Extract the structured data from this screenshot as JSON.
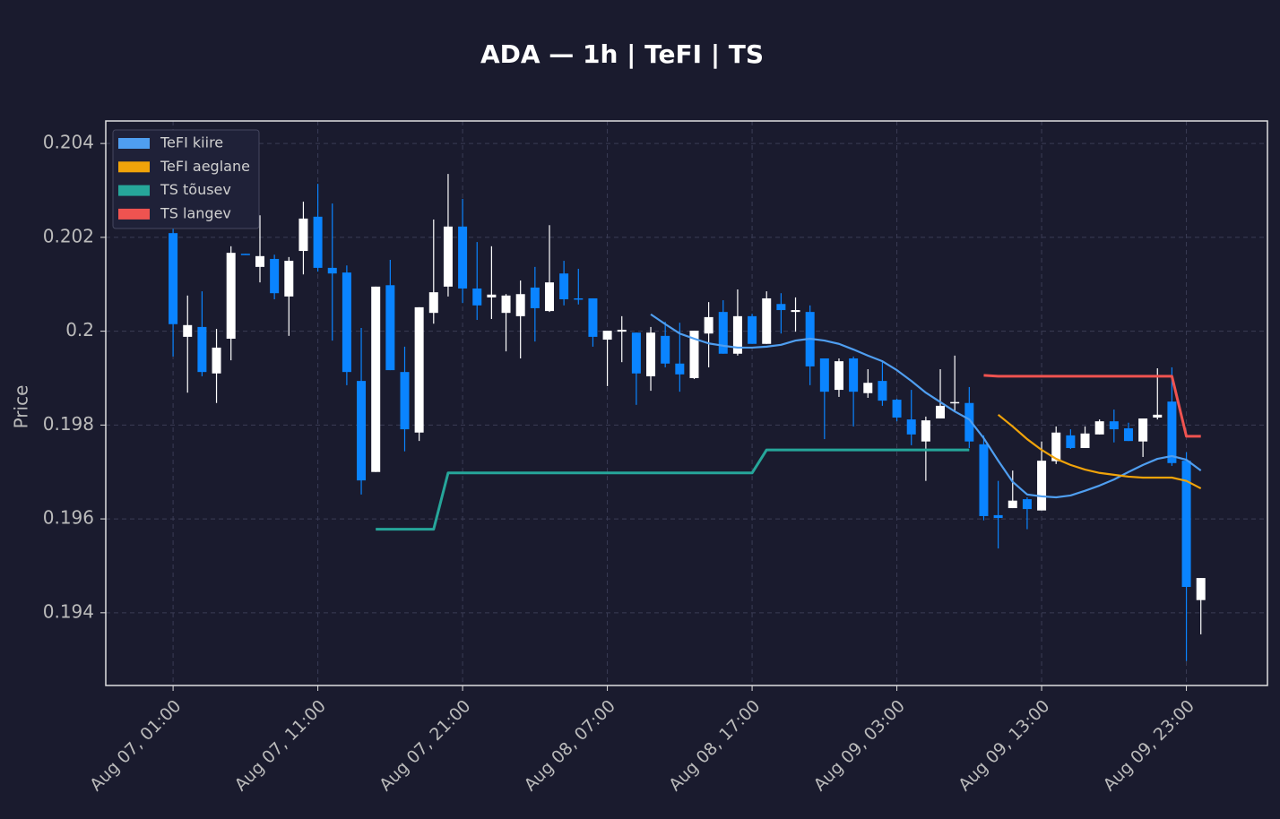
{
  "chart_data": {
    "type": "candlestick",
    "title": "ADA — 1h  |  TeFI  |  TS",
    "y_label": "Price",
    "categories": [
      "Aug 07, 01:00",
      null,
      null,
      null,
      null,
      null,
      null,
      null,
      null,
      null,
      "Aug 07, 11:00",
      null,
      null,
      null,
      null,
      null,
      null,
      null,
      null,
      null,
      "Aug 07, 21:00",
      null,
      null,
      null,
      null,
      null,
      null,
      null,
      null,
      null,
      "Aug 08, 07:00",
      null,
      null,
      null,
      null,
      null,
      null,
      null,
      null,
      null,
      "Aug 08, 17:00",
      null,
      null,
      null,
      null,
      null,
      null,
      null,
      null,
      null,
      "Aug 09, 03:00",
      null,
      null,
      null,
      null,
      null,
      null,
      null,
      null,
      null,
      "Aug 09, 13:00",
      null,
      null,
      null,
      null,
      null,
      null,
      null,
      null,
      null,
      "Aug 09, 23:00",
      null
    ],
    "open": [
      0.20209,
      0.19988,
      0.20009,
      0.1991,
      0.19984,
      0.20165,
      0.20137,
      0.20154,
      0.20074,
      0.20171,
      0.20244,
      0.20135,
      0.20125,
      0.19894,
      0.197,
      0.20098,
      0.19913,
      0.19784,
      0.20039,
      0.20095,
      0.20223,
      0.20091,
      0.20072,
      0.20039,
      0.20032,
      0.20093,
      0.20043,
      0.20123,
      0.2007,
      0.2007,
      0.19982,
      0.19999,
      0.19997,
      0.19904,
      0.1999,
      0.19931,
      0.199,
      0.19995,
      0.20041,
      0.19952,
      0.20032,
      0.19973,
      0.20058,
      0.20041,
      0.20041,
      0.19942,
      0.19875,
      0.19942,
      0.19868,
      0.19894,
      0.19854,
      0.19812,
      0.19765,
      0.19814,
      0.19847,
      0.19847,
      0.19759,
      0.19608,
      0.19623,
      0.19642,
      0.19618,
      0.19723,
      0.19778,
      0.19751,
      0.1978,
      0.19808,
      0.19793,
      0.19765,
      0.19816,
      0.1985,
      0.19724,
      0.19427
    ],
    "high": [
      0.20228,
      0.20076,
      0.20085,
      0.20005,
      0.20181,
      0.20165,
      0.20247,
      0.20163,
      0.20158,
      0.20276,
      0.20314,
      0.20272,
      0.2014,
      0.20007,
      0.20095,
      0.20152,
      0.19967,
      0.20051,
      0.20238,
      0.20335,
      0.20282,
      0.2019,
      0.20181,
      0.20079,
      0.20108,
      0.20137,
      0.20226,
      0.2015,
      0.20133,
      0.2007,
      0.20001,
      0.20032,
      0.19997,
      0.20009,
      0.2002,
      0.20018,
      0.20001,
      0.20062,
      0.20066,
      0.20089,
      0.20037,
      0.20085,
      0.20081,
      0.20072,
      0.20055,
      0.19942,
      0.19942,
      0.19946,
      0.19919,
      0.19938,
      0.19856,
      0.19875,
      0.19818,
      0.19919,
      0.19948,
      0.19881,
      0.19778,
      0.19681,
      0.19703,
      0.19646,
      0.19765,
      0.19797,
      0.19791,
      0.19797,
      0.19812,
      0.19833,
      0.19805,
      0.19814,
      0.19921,
      0.19923,
      0.19742,
      0.19474
    ],
    "low": [
      0.19946,
      0.19869,
      0.19904,
      0.19847,
      0.19938,
      0.20163,
      0.20104,
      0.20068,
      0.1999,
      0.20121,
      0.20127,
      0.1998,
      0.19885,
      0.19652,
      0.197,
      0.19917,
      0.19744,
      0.19766,
      0.20016,
      0.20074,
      0.2006,
      0.20024,
      0.20026,
      0.19957,
      0.19942,
      0.19978,
      0.20041,
      0.20055,
      0.20057,
      0.19967,
      0.19883,
      0.19934,
      0.19843,
      0.19873,
      0.19923,
      0.19871,
      0.19898,
      0.19923,
      0.19952,
      0.19948,
      0.19973,
      0.19973,
      0.19995,
      0.19999,
      0.19885,
      0.1977,
      0.1986,
      0.19797,
      0.19858,
      0.19841,
      0.19808,
      0.19757,
      0.19681,
      0.19814,
      0.19828,
      0.19751,
      0.19597,
      0.19537,
      0.19623,
      0.19578,
      0.19618,
      0.19717,
      0.19749,
      0.19751,
      0.1978,
      0.19763,
      0.19766,
      0.19732,
      0.19812,
      0.19713,
      0.19297,
      0.19354
    ],
    "close": [
      0.20015,
      0.20013,
      0.19913,
      0.19965,
      0.20167,
      0.20163,
      0.2016,
      0.20081,
      0.2015,
      0.2024,
      0.20135,
      0.20123,
      0.19913,
      0.19682,
      0.20095,
      0.19917,
      0.19791,
      0.20051,
      0.20083,
      0.20223,
      0.20091,
      0.20055,
      0.20078,
      0.20076,
      0.20079,
      0.20049,
      0.20104,
      0.20068,
      0.20068,
      0.19988,
      0.20001,
      0.20003,
      0.1991,
      0.19997,
      0.19931,
      0.19908,
      0.20001,
      0.2003,
      0.19952,
      0.20032,
      0.19973,
      0.2007,
      0.20045,
      0.20045,
      0.19925,
      0.19871,
      0.19936,
      0.19871,
      0.1989,
      0.19852,
      0.19816,
      0.1978,
      0.1981,
      0.19841,
      0.19849,
      0.19765,
      0.19606,
      0.19602,
      0.19639,
      0.19621,
      0.19724,
      0.19784,
      0.19751,
      0.19782,
      0.19808,
      0.19791,
      0.19766,
      0.19814,
      0.19822,
      0.19719,
      0.19455,
      0.19474
    ],
    "up_color": "#ffffff",
    "down_color": "#0a84ff",
    "series": [
      {
        "name": "TeFI kiire",
        "color": "#4f9ef0",
        "values": [
          null,
          null,
          null,
          null,
          null,
          null,
          null,
          null,
          null,
          null,
          null,
          null,
          null,
          null,
          null,
          null,
          null,
          null,
          null,
          null,
          null,
          null,
          null,
          null,
          null,
          null,
          null,
          null,
          null,
          null,
          null,
          null,
          null,
          0.20036,
          0.20015,
          0.19995,
          0.19984,
          0.19974,
          0.19969,
          0.19965,
          0.19965,
          0.19967,
          0.19971,
          0.1998,
          0.19984,
          0.1998,
          0.19973,
          0.19961,
          0.19948,
          0.19936,
          0.19917,
          0.19894,
          0.19869,
          0.19849,
          0.19829,
          0.19812,
          0.19772,
          0.19724,
          0.19679,
          0.19652,
          0.19648,
          0.19646,
          0.1965,
          0.1966,
          0.19671,
          0.19684,
          0.197,
          0.19715,
          0.19728,
          0.19734,
          0.19726,
          0.19703
        ]
      },
      {
        "name": "TeFI aeglane",
        "color": "#f0a30a",
        "values": [
          null,
          null,
          null,
          null,
          null,
          null,
          null,
          null,
          null,
          null,
          null,
          null,
          null,
          null,
          null,
          null,
          null,
          null,
          null,
          null,
          null,
          null,
          null,
          null,
          null,
          null,
          null,
          null,
          null,
          null,
          null,
          null,
          null,
          null,
          null,
          null,
          null,
          null,
          null,
          null,
          null,
          null,
          null,
          null,
          null,
          null,
          null,
          null,
          null,
          null,
          null,
          null,
          null,
          null,
          null,
          null,
          null,
          0.19822,
          0.19797,
          0.1977,
          0.19747,
          0.19728,
          0.19715,
          0.19705,
          0.19698,
          0.19694,
          0.1969,
          0.19688,
          0.19688,
          0.19688,
          0.19681,
          0.19665
        ]
      },
      {
        "name": "TS tõusev",
        "color": "#26a69a",
        "values": [
          null,
          null,
          null,
          null,
          null,
          null,
          null,
          null,
          null,
          null,
          null,
          null,
          null,
          null,
          0.19578,
          0.19578,
          0.19578,
          0.19578,
          0.19578,
          0.19698,
          0.19698,
          0.19698,
          0.19698,
          0.19698,
          0.19698,
          0.19698,
          0.19698,
          0.19698,
          0.19698,
          0.19698,
          0.19698,
          0.19698,
          0.19698,
          0.19698,
          0.19698,
          0.19698,
          0.19698,
          0.19698,
          0.19698,
          0.19698,
          0.19698,
          0.19747,
          0.19747,
          0.19747,
          0.19747,
          0.19747,
          0.19747,
          0.19747,
          0.19747,
          0.19747,
          0.19747,
          0.19747,
          0.19747,
          0.19747,
          0.19747,
          0.19747,
          null,
          null,
          null,
          null,
          null,
          null,
          null,
          null,
          null,
          null,
          null,
          null,
          null,
          null,
          null,
          null
        ]
      },
      {
        "name": "TS langev",
        "color": "#ef5350",
        "values": [
          null,
          null,
          null,
          null,
          null,
          null,
          null,
          null,
          null,
          null,
          null,
          null,
          null,
          null,
          null,
          null,
          null,
          null,
          null,
          null,
          null,
          null,
          null,
          null,
          null,
          null,
          null,
          null,
          null,
          null,
          null,
          null,
          null,
          null,
          null,
          null,
          null,
          null,
          null,
          null,
          null,
          null,
          null,
          null,
          null,
          null,
          null,
          null,
          null,
          null,
          null,
          null,
          null,
          null,
          null,
          null,
          0.19906,
          0.19904,
          0.19904,
          0.19904,
          0.19904,
          0.19904,
          0.19904,
          0.19904,
          0.19904,
          0.19904,
          0.19904,
          0.19904,
          0.19904,
          0.19904,
          0.19776,
          0.19776
        ]
      }
    ],
    "xlim": [
      -4.65,
      75.6
    ],
    "ylim": [
      0.19245,
      0.20448
    ],
    "yticks": [
      0.194,
      0.196,
      0.198,
      0.2,
      0.202,
      0.204
    ],
    "grid": true,
    "legend": "upper left"
  }
}
